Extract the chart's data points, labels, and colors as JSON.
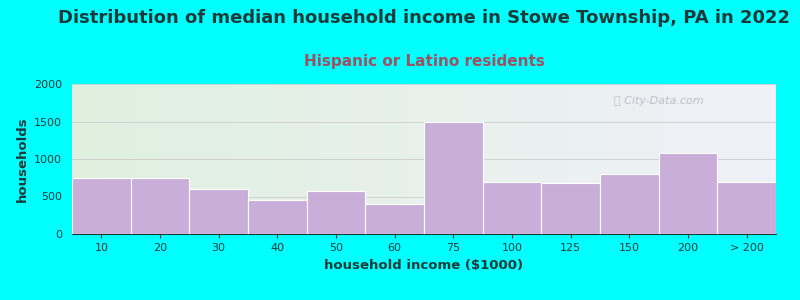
{
  "title": "Distribution of median household income in Stowe Township, PA in 2022",
  "subtitle": "Hispanic or Latino residents",
  "xlabel": "household income ($1000)",
  "ylabel": "households",
  "background_color": "#00FFFF",
  "bar_color": "#c8aed8",
  "bar_edge_color": "#ffffff",
  "categories": [
    "10",
    "20",
    "30",
    "40",
    "50",
    "60",
    "75",
    "100",
    "125",
    "150",
    "200",
    "> 200"
  ],
  "values": [
    750,
    750,
    600,
    450,
    575,
    400,
    1500,
    700,
    675,
    800,
    1075,
    700
  ],
  "bin_edges": [
    0,
    10,
    20,
    30,
    40,
    50,
    60,
    75,
    100,
    125,
    150,
    200,
    250
  ],
  "ylim": [
    0,
    2000
  ],
  "yticks": [
    0,
    500,
    1000,
    1500,
    2000
  ],
  "title_fontsize": 13,
  "subtitle_fontsize": 11,
  "axis_label_fontsize": 9.5,
  "tick_fontsize": 8,
  "title_color": "#1a3a3a",
  "subtitle_color": "#a05060",
  "axis_label_color": "#1a3a3a",
  "tick_color": "#1a3a3a",
  "watermark_text": "City-Data.com",
  "grid_color": "#cccccc",
  "grad_left": "#dff0df",
  "grad_right": "#f0f0f8"
}
